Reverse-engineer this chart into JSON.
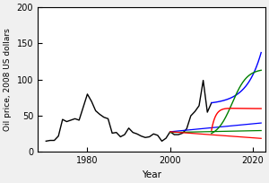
{
  "title": "",
  "xlabel": "Year",
  "ylabel": "Oil price, 2008 US dollars",
  "xlim": [
    1968,
    2023
  ],
  "ylim": [
    0,
    200
  ],
  "xticks": [
    1980,
    2000,
    2020
  ],
  "yticks": [
    0,
    50,
    100,
    150,
    200
  ],
  "background_color": "#f0f0f0",
  "figsize": [
    3.0,
    2.04
  ],
  "dpi": 100,
  "hist_years": [
    1970,
    1971,
    1972,
    1973,
    1974,
    1975,
    1976,
    1977,
    1978,
    1979,
    1980,
    1981,
    1982,
    1983,
    1984,
    1985,
    1986,
    1987,
    1988,
    1989,
    1990,
    1991,
    1992,
    1993,
    1994,
    1995,
    1996,
    1997,
    1998,
    1999,
    2000,
    2001,
    2002,
    2003,
    2004,
    2005,
    2006,
    2007,
    2008,
    2009,
    2010
  ],
  "hist_prices": [
    15,
    16,
    16,
    22,
    45,
    42,
    44,
    46,
    44,
    62,
    80,
    70,
    57,
    52,
    48,
    46,
    26,
    27,
    21,
    24,
    33,
    27,
    25,
    22,
    20,
    21,
    25,
    23,
    15,
    19,
    28,
    24,
    24,
    26,
    32,
    50,
    56,
    64,
    99,
    55,
    68
  ]
}
